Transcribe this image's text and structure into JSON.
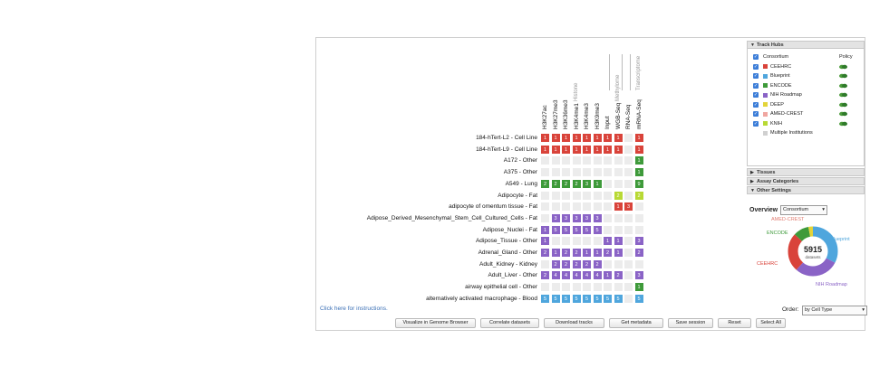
{
  "group_labels": [
    "Histone",
    "Methylome",
    "Transcriptome"
  ],
  "columns": [
    "H3K27ac",
    "H3K27me3",
    "H3K36me3",
    "H3K4me1",
    "H3K4me3",
    "H3K9me3",
    "Input",
    "WGB-Seq",
    "RNA-Seq",
    "mRNA-Seq"
  ],
  "rows": [
    {
      "label": "184-hTert-L2 - Cell Line",
      "cells": [
        "1",
        "1",
        "1",
        "1",
        "1",
        "1",
        "1",
        "1",
        "",
        "1"
      ],
      "color": "#d9433a"
    },
    {
      "label": "184-hTert-L9 - Cell Line",
      "cells": [
        "1",
        "1",
        "1",
        "1",
        "1",
        "1",
        "1",
        "1",
        "",
        "1"
      ],
      "color": "#d9433a"
    },
    {
      "label": "A172 - Other",
      "cells": [
        "",
        "",
        "",
        "",
        "",
        "",
        "",
        "",
        "",
        "1"
      ],
      "color": "#3e9a3a"
    },
    {
      "label": "A375 - Other",
      "cells": [
        "",
        "",
        "",
        "",
        "",
        "",
        "",
        "",
        "",
        "1"
      ],
      "color": "#3e9a3a"
    },
    {
      "label": "A549 - Lung",
      "cells": [
        "2",
        "2",
        "2",
        "2",
        "3",
        "1",
        "",
        "",
        "",
        "9"
      ],
      "color": "#3e9a3a"
    },
    {
      "label": "Adipocyte - Fat",
      "cells": [
        "",
        "",
        "",
        "",
        "",
        "",
        "",
        "2",
        "",
        "2"
      ],
      "color": "#b8d934"
    },
    {
      "label": "adipocyte of omentum tissue - Fat",
      "cells": [
        "",
        "",
        "",
        "",
        "",
        "",
        "",
        "1",
        "3",
        ""
      ],
      "color": "#d9433a"
    },
    {
      "label": "Adipose_Derived_Mesenchymal_Stem_Cell_Cultured_Cells - Fat",
      "cells": [
        "",
        "3",
        "3",
        "3",
        "3",
        "3",
        "",
        "",
        "",
        ""
      ],
      "color": "#8a63c6"
    },
    {
      "label": "Adipose_Nuclei - Fat",
      "cells": [
        "1",
        "5",
        "5",
        "5",
        "5",
        "5",
        "",
        "",
        "",
        ""
      ],
      "color": "#8a63c6"
    },
    {
      "label": "Adipose_Tissue - Other",
      "cells": [
        "1",
        "",
        "",
        "",
        "",
        "",
        "1",
        "1",
        "",
        "3"
      ],
      "color": "#8a63c6"
    },
    {
      "label": "Adrenal_Gland - Other",
      "cells": [
        "2",
        "1",
        "2",
        "2",
        "1",
        "1",
        "2",
        "1",
        "",
        "2"
      ],
      "color": "#8a63c6"
    },
    {
      "label": "Adult_Kidney - Kidney",
      "cells": [
        "",
        "2",
        "2",
        "2",
        "2",
        "2",
        "",
        "",
        "",
        ""
      ],
      "color": "#8a63c6"
    },
    {
      "label": "Adult_Liver - Other",
      "cells": [
        "2",
        "4",
        "4",
        "4",
        "4",
        "4",
        "1",
        "2",
        "",
        "3"
      ],
      "color": "#8a63c6"
    },
    {
      "label": "airway epithelial cell - Other",
      "cells": [
        "",
        "",
        "",
        "",
        "",
        "",
        "",
        "",
        "",
        "1"
      ],
      "color": "#3e9a3a"
    },
    {
      "label": "alternatively activated macrophage - Blood",
      "cells": [
        "5",
        "5",
        "5",
        "5",
        "5",
        "5",
        "5",
        "5",
        "",
        "5"
      ],
      "color": "#4fa6dd"
    }
  ],
  "footer": {
    "instructions_link": "Click here for instructions.",
    "order_label": "Order:",
    "order_value": "by Cell Type"
  },
  "actions": [
    "Visualize in Genome Browser",
    "Correlate datasets",
    "Download tracks",
    "Get metadata",
    "Save session",
    "Reset",
    "Select All"
  ],
  "sidebar": {
    "track_hubs_title": "Track Hubs",
    "col_consortium": "Consortium",
    "col_policy": "Policy",
    "hubs": [
      {
        "name": "CEEHRC",
        "color": "#d9433a"
      },
      {
        "name": "Blueprint",
        "color": "#4fa6dd"
      },
      {
        "name": "ENCODE",
        "color": "#3e9a3a"
      },
      {
        "name": "NIH Roadmap",
        "color": "#8a63c6"
      },
      {
        "name": "DEEP",
        "color": "#e3d43a"
      },
      {
        "name": "AMED-CREST",
        "color": "#f0a6a0"
      },
      {
        "name": "KNIH",
        "color": "#b8d934"
      },
      {
        "name": "Multiple Institutions",
        "color": "#d0d0d0"
      }
    ],
    "tissues_title": "Tissues",
    "assay_title": "Assay Categories",
    "other_title": "Other Settings",
    "overview_label": "Overview",
    "overview_select": "Consortium",
    "donut_total": "5915",
    "donut_sub": "datasets",
    "donut_labels": {
      "amed": "AMED-CREST",
      "encode": "ENCODE",
      "blueprint": "Blueprint",
      "ceehrc": "CEEHRC",
      "nih": "NIH Roadmap"
    }
  }
}
